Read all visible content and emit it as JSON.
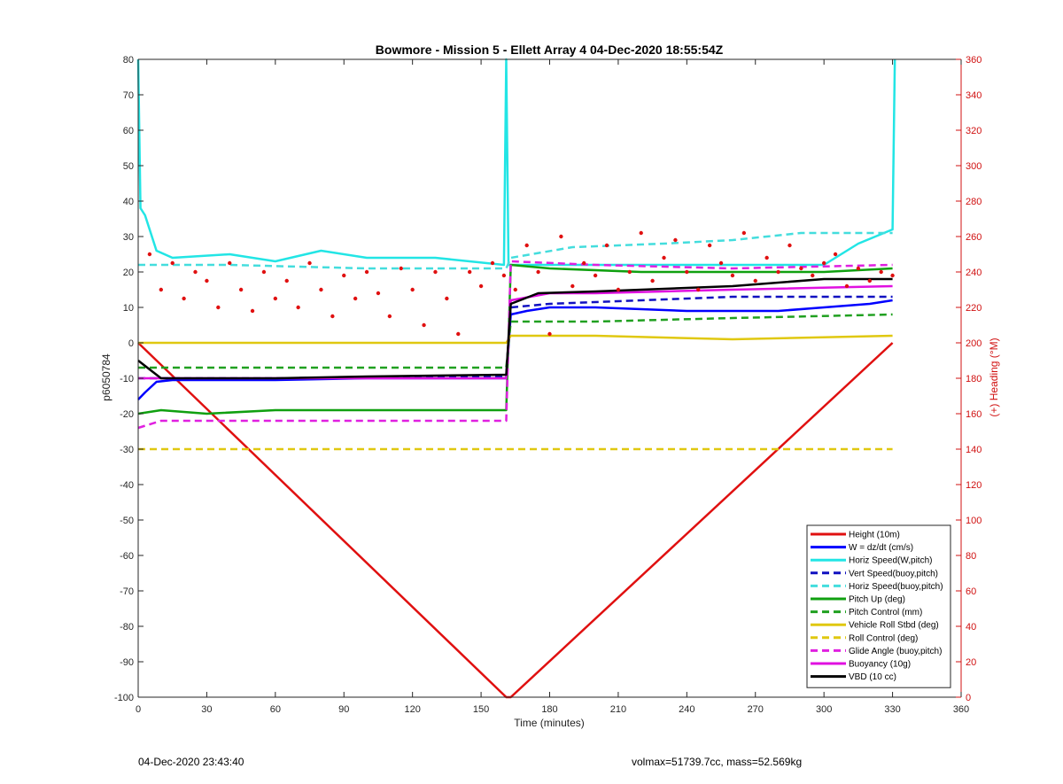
{
  "chart_data": {
    "type": "line",
    "title": "Bowmore - Mission 5 - Ellett Array 4 04-Dec-2020 18:55:54Z",
    "xlabel": "Time (minutes)",
    "ylabel_left": "p6050784",
    "ylabel_right": "(+) Heading (°M)",
    "xlim": [
      0,
      360
    ],
    "ylim_left": [
      -100,
      80
    ],
    "ylim_right": [
      0,
      360
    ],
    "x_ticks": [
      "0",
      "30",
      "60",
      "90",
      "120",
      "150",
      "180",
      "210",
      "240",
      "270",
      "300",
      "330",
      "360"
    ],
    "y_ticks_left": [
      "80",
      "70",
      "60",
      "50",
      "40",
      "30",
      "20",
      "10",
      "0",
      "-10",
      "-20",
      "-30",
      "-40",
      "-50",
      "-60",
      "-70",
      "-80",
      "-90",
      "-100"
    ],
    "y_ticks_right": [
      "360",
      "340",
      "320",
      "300",
      "280",
      "260",
      "240",
      "220",
      "200",
      "180",
      "160",
      "140",
      "120",
      "100",
      "80",
      "60",
      "40",
      "20",
      "0"
    ],
    "legend_position": "bottom-right",
    "series": [
      {
        "name": "Height (10m)",
        "color": "#e01010",
        "style": "solid",
        "x": [
          0,
          161,
          163,
          330
        ],
        "y": [
          0,
          -100,
          -100,
          0
        ]
      },
      {
        "name": "W = dz/dt (cm/s)",
        "color": "#0000ff",
        "style": "solid",
        "x": [
          0,
          3,
          8,
          15,
          60,
          100,
          130,
          161,
          163,
          170,
          180,
          200,
          240,
          280,
          300,
          320,
          330
        ],
        "y": [
          -16,
          -14,
          -11,
          -10.5,
          -10.5,
          -10,
          -10,
          -10,
          8,
          9,
          10,
          10,
          9,
          9,
          10,
          11,
          12
        ]
      },
      {
        "name": "Horiz Speed(W,pitch)",
        "color": "#22e5e5",
        "style": "solid",
        "x": [
          0,
          1,
          3,
          8,
          15,
          40,
          60,
          80,
          100,
          130,
          160,
          161,
          162,
          164,
          170,
          200,
          240,
          280,
          300,
          315,
          330,
          331
        ],
        "y": [
          80,
          38,
          36,
          26,
          24,
          25,
          23,
          26,
          24,
          24,
          22,
          80,
          22,
          22,
          22,
          22,
          22,
          22,
          22,
          28,
          32,
          80
        ]
      },
      {
        "name": "Vert Speed(buoy,pitch)",
        "color": "#1010c0",
        "style": "dashed",
        "x": [
          0,
          10,
          60,
          120,
          161,
          163,
          180,
          220,
          260,
          300,
          330
        ],
        "y": [
          -10,
          -10,
          -10,
          -9.5,
          -9.5,
          10,
          11,
          12,
          13,
          13,
          13
        ]
      },
      {
        "name": "Horiz Speed(buoy,pitch)",
        "color": "#44dddd",
        "style": "dashed",
        "x": [
          0,
          40,
          100,
          161,
          163,
          190,
          230,
          260,
          290,
          330
        ],
        "y": [
          22,
          22,
          21,
          21,
          24,
          27,
          28,
          29,
          31,
          31
        ]
      },
      {
        "name": "Pitch Up (deg)",
        "color": "#10a010",
        "style": "solid",
        "x": [
          0,
          10,
          30,
          60,
          100,
          130,
          161,
          163,
          180,
          220,
          260,
          300,
          330
        ],
        "y": [
          -20,
          -19,
          -20,
          -19,
          -19,
          -19,
          -19,
          22,
          21,
          20,
          20,
          20,
          21
        ]
      },
      {
        "name": "Pitch Control (mm)",
        "color": "#20a020",
        "style": "dashed",
        "x": [
          0,
          60,
          161,
          163,
          200,
          260,
          330
        ],
        "y": [
          -7,
          -7,
          -7,
          6,
          6,
          7,
          8
        ]
      },
      {
        "name": "Vehicle Roll Stbd (deg)",
        "color": "#e0c810",
        "style": "solid",
        "x": [
          0,
          10,
          60,
          120,
          161,
          163,
          200,
          260,
          330
        ],
        "y": [
          0,
          0,
          0,
          0,
          0,
          2,
          2,
          1,
          2
        ]
      },
      {
        "name": "Roll Control (deg)",
        "color": "#e0c810",
        "style": "dashed",
        "x": [
          0,
          60,
          161,
          163,
          330
        ],
        "y": [
          -30,
          -30,
          -30,
          -30,
          -30
        ]
      },
      {
        "name": "Glide Angle (buoy,pitch)",
        "color": "#e020e0",
        "style": "dashed",
        "x": [
          0,
          10,
          60,
          120,
          161,
          163,
          200,
          260,
          330
        ],
        "y": [
          -24,
          -22,
          -22,
          -22,
          -22,
          23,
          22,
          21,
          22
        ]
      },
      {
        "name": "Buoyancy (10g)",
        "color": "#e010e0",
        "style": "solid",
        "x": [
          0,
          10,
          60,
          161,
          163,
          180,
          200,
          260,
          330
        ],
        "y": [
          -10,
          -10,
          -10,
          -10,
          12,
          14,
          14,
          15,
          16
        ]
      },
      {
        "name": "VBD (10 cc)",
        "color": "#000000",
        "style": "solid",
        "x": [
          0,
          10,
          60,
          100,
          161,
          163,
          175,
          200,
          260,
          300,
          330
        ],
        "y": [
          -5,
          -10,
          -10,
          -9.5,
          -9,
          11,
          14,
          14.5,
          16,
          18,
          18
        ]
      },
      {
        "name": "Heading",
        "color": "#e01010",
        "style": "dots",
        "axis": "right",
        "x": [
          5,
          10,
          15,
          20,
          25,
          30,
          35,
          40,
          45,
          50,
          55,
          60,
          65,
          70,
          75,
          80,
          85,
          90,
          95,
          100,
          105,
          110,
          115,
          120,
          125,
          130,
          135,
          140,
          145,
          150,
          155,
          160,
          165,
          170,
          175,
          180,
          185,
          190,
          195,
          200,
          205,
          210,
          215,
          220,
          225,
          230,
          235,
          240,
          245,
          250,
          255,
          260,
          265,
          270,
          275,
          280,
          285,
          290,
          295,
          300,
          305,
          310,
          315,
          320,
          325,
          330
        ],
        "y": [
          250,
          230,
          245,
          225,
          240,
          235,
          220,
          245,
          230,
          218,
          240,
          225,
          235,
          220,
          245,
          230,
          215,
          238,
          225,
          240,
          228,
          215,
          242,
          230,
          210,
          240,
          225,
          205,
          240,
          232,
          245,
          238,
          230,
          255,
          240,
          205,
          260,
          232,
          245,
          238,
          255,
          230,
          240,
          262,
          235,
          248,
          258,
          240,
          230,
          255,
          245,
          238,
          262,
          235,
          248,
          240,
          255,
          242,
          238,
          245,
          250,
          232,
          242,
          235,
          240,
          238
        ]
      }
    ]
  },
  "footer": {
    "left": "04-Dec-2020 23:43:40",
    "right": "volmax=51739.7cc, mass=52.569kg"
  }
}
